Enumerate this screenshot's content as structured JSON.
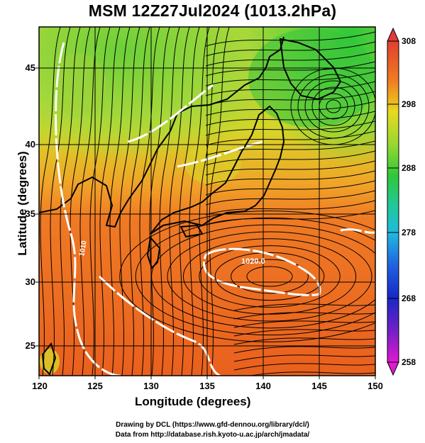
{
  "title": "MSM 12Z27Jul2024 (1013.2hPa)",
  "x_axis": {
    "label": "Longitude (degrees)",
    "ticks": [
      "120",
      "125",
      "130",
      "135",
      "140",
      "145",
      "150"
    ]
  },
  "y_axis": {
    "label": "Latitude  (degrees)",
    "ticks": [
      "25",
      "30",
      "35",
      "40",
      "45"
    ]
  },
  "colorbar": {
    "ticks": [
      "308",
      "298",
      "288",
      "278",
      "268",
      "258"
    ]
  },
  "contours": {
    "label_1020": "1020.0",
    "label_1010": "1010"
  },
  "credits": {
    "line1": "Drawing by DCL (https://www.gfd-dennou.org/library/dcl/)",
    "line2": "Data from http://database.rish.kyoto-u.ac.jp/arch/jmadata/"
  },
  "colors": {
    "hot": "#e8551e",
    "warm": "#f08a2a",
    "yellow": "#d8d820",
    "green": "#3cc63c",
    "lightgreen": "#8ed83a",
    "cb_top": "#e23a3a",
    "cb_bottom": "#e01ad0"
  }
}
